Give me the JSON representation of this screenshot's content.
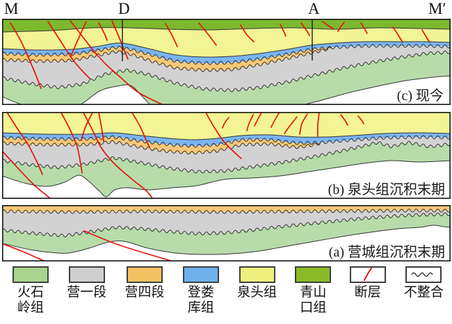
{
  "figure": {
    "section_markers": [
      "M",
      "D",
      "A",
      "M′"
    ],
    "panels": {
      "c": {
        "caption": "(c) 现今"
      },
      "b": {
        "caption": "(b) 泉头组沉积末期"
      },
      "a": {
        "caption": "(a) 营城组沉积末期"
      }
    }
  },
  "colors": {
    "qingshankou": "#7cb92d",
    "quantou": "#f3f494",
    "denglouku": "#79b5f1",
    "yingsiduan": "#f7c878",
    "yingyiduan": "#d3d2d3",
    "huoshiling": "#b7dcaa",
    "fault": "#e8130d",
    "contact": "#333333",
    "border": "#141414",
    "well": "#1a1a1a"
  },
  "legend": {
    "items": [
      {
        "name": "huoshiling",
        "color": "#a8d48e",
        "lines": [
          "火石",
          "岭组"
        ]
      },
      {
        "name": "yingyiduan",
        "color": "#cfcfcf",
        "lines": [
          "营一段"
        ]
      },
      {
        "name": "yingsiduan",
        "color": "#f5c263",
        "lines": [
          "营四段"
        ]
      },
      {
        "name": "denglouku",
        "color": "#6fb1ed",
        "lines": [
          "登娄",
          "库组"
        ]
      },
      {
        "name": "quantou",
        "color": "#edf07d",
        "lines": [
          "泉头组"
        ]
      },
      {
        "name": "qingshankou",
        "color": "#8bba28",
        "lines": [
          "青山",
          "口组"
        ]
      },
      {
        "name": "fault",
        "color": "#e8130d",
        "lines": [
          "断层"
        ]
      },
      {
        "name": "unconformity",
        "lines": [
          "不整合"
        ]
      }
    ]
  }
}
